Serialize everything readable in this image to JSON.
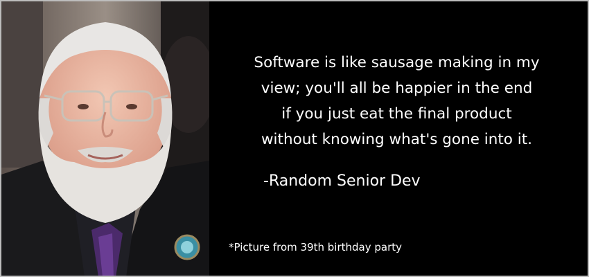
{
  "quote": {
    "lines": [
      "Software is like sausage making in my",
      "view; you'll all be happier in the end",
      "if you just eat the final product",
      "without knowing what's gone into it."
    ],
    "attribution": "-Random Senior Dev"
  },
  "footnote": "*Picture from 39th birthday party",
  "colors": {
    "background": "#000000",
    "text": "#ffffff",
    "border": "#bdbdbd"
  }
}
